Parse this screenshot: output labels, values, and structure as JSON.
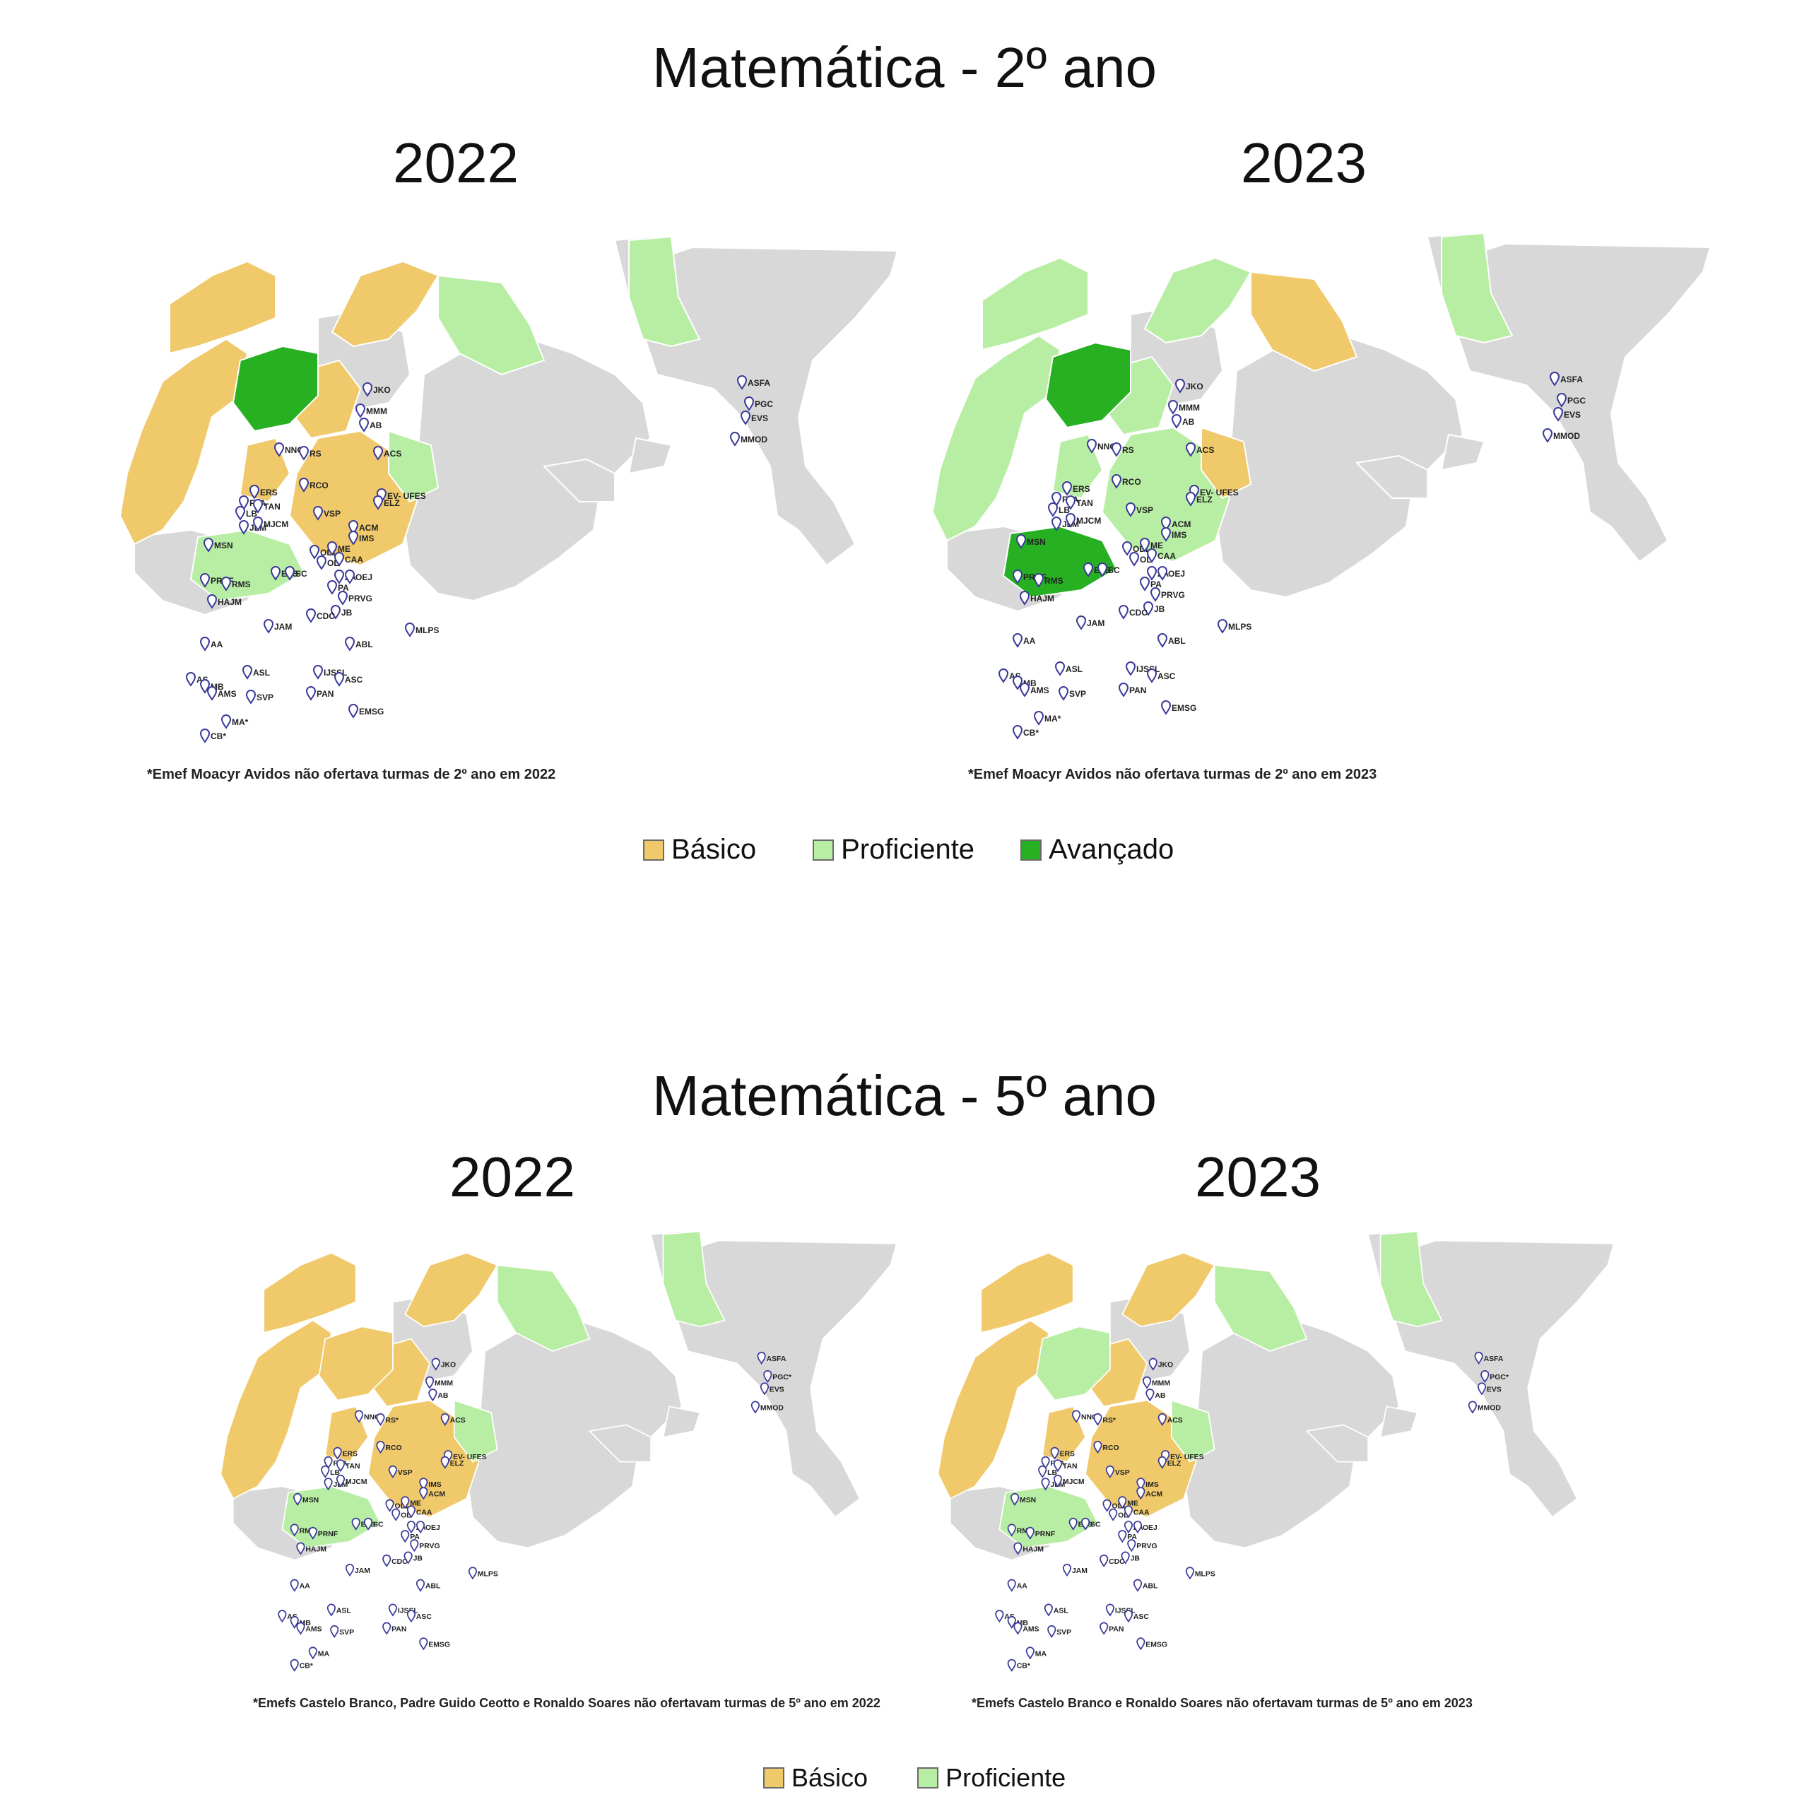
{
  "colors": {
    "basico": "#f0c96b",
    "proficiente": "#b8eea4",
    "avancado": "#26b022",
    "other": "#d8d8d8",
    "marker": "#3a3a9a"
  },
  "section1": {
    "title": "Matemática - 2º ano",
    "left": {
      "year": "2022",
      "note": "*Emef Moacyr Avidos não ofertava turmas de 2º ano em 2022",
      "regions": {
        "west": "basico",
        "north": "basico",
        "center": "basico",
        "lake": "avancado",
        "east": "proficiente",
        "northeast": "proficiente",
        "south": "proficiente"
      }
    },
    "right": {
      "year": "2023",
      "note": "*Emef Moacyr Avidos não ofertava turmas de 2º ano em 2023",
      "regions": {
        "west": "proficiente",
        "north": "proficiente",
        "center": "proficiente",
        "lake": "avancado",
        "east": "basico",
        "northeast": "proficiente",
        "south": "avancado"
      }
    },
    "legend": [
      {
        "key": "basico",
        "label": "Básico"
      },
      {
        "key": "proficiente",
        "label": "Proficiente"
      },
      {
        "key": "avancado",
        "label": "Avançado"
      }
    ]
  },
  "section2": {
    "title": "Matemática - 5º ano",
    "left": {
      "year": "2022",
      "note": "*Emefs Castelo Branco, Padre Guido Ceotto e Ronaldo Soares não ofertavam turmas de 5º ano em 2022",
      "regions": {
        "west": "basico",
        "north": "basico",
        "center": "basico",
        "lake": "basico",
        "east": "proficiente",
        "northeast": "proficiente",
        "south": "proficiente"
      }
    },
    "right": {
      "year": "2023",
      "note": "*Emefs Castelo Branco e Ronaldo Soares não ofertavam turmas de 5º ano em 2023",
      "regions": {
        "west": "basico",
        "north": "basico",
        "center": "basico",
        "lake": "proficiente",
        "east": "proficiente",
        "northeast": "proficiente",
        "south": "proficiente"
      }
    },
    "legend": [
      {
        "key": "basico",
        "label": "Básico"
      },
      {
        "key": "proficiente",
        "label": "Proficiente"
      }
    ]
  },
  "school_labels": [
    "JKO",
    "ASFA",
    "PGC",
    "EVS",
    "MMOD",
    "MMM",
    "AB",
    "NNG",
    "RS",
    "ACS",
    "RCO",
    "ERS",
    "EV- UFES",
    "ELZ",
    "FLA",
    "TAN",
    "LB",
    "VSP",
    "JLM",
    "MJCM",
    "ACM",
    "IMS",
    "MSN",
    "ODL",
    "ME",
    "OL",
    "CAA",
    "EPS",
    "SC",
    "ZA",
    "OEJ",
    "PRNF",
    "RMS",
    "PA",
    "HAJM",
    "PRVG",
    "JB",
    "CDC",
    "JAM",
    "MLPS",
    "AA",
    "ABL",
    "AS",
    "MB",
    "IJSSL",
    "ASL",
    "ASC",
    "AMS",
    "PAN",
    "SVP",
    "EMSG",
    "MA*",
    "CB*"
  ],
  "school_labels_5ano": [
    "JKO",
    "ASFA",
    "PGC*",
    "EVS",
    "MMOD",
    "MMM",
    "AB",
    "NNG",
    "RS*",
    "ACS",
    "RCO",
    "ERS",
    "EV- UFES",
    "ELZ",
    "FLA",
    "TAN",
    "LB",
    "VSP",
    "JLM",
    "MJCM",
    "IMS",
    "ACM",
    "MSN",
    "ODL",
    "ME",
    "OL",
    "CAA",
    "EPS",
    "SC",
    "ZA",
    "OEJ",
    "RMS",
    "PRNF",
    "PA",
    "HAJM",
    "PRVG",
    "JB",
    "CDC",
    "JAM",
    "MLPS",
    "AA",
    "ABL",
    "AS",
    "MB",
    "IJSSL",
    "ASL",
    "ASC",
    "AMS",
    "PAN",
    "SVP",
    "EMSG",
    "MA",
    "CB*"
  ]
}
